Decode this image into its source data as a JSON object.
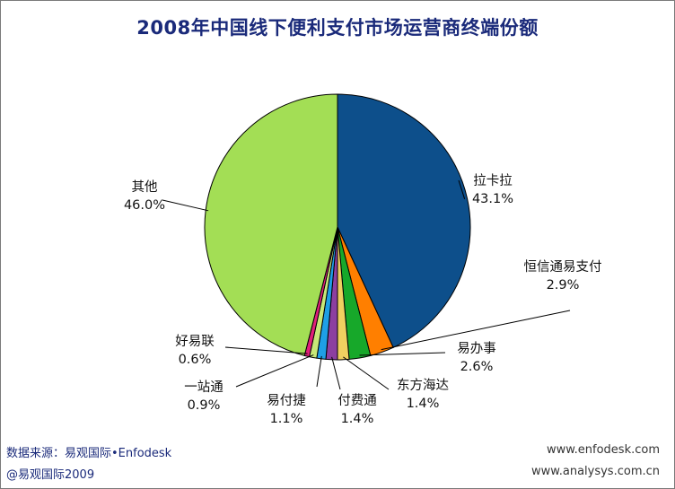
{
  "chart_data": {
    "type": "pie",
    "title": "2008年中国线下便利支付市场运营商终端份额",
    "slices": [
      {
        "name": "拉卡拉",
        "value": 43.1,
        "label": "43.1%",
        "color": "#0d4f8b"
      },
      {
        "name": "恒信通易支付",
        "value": 2.9,
        "label": "2.9%",
        "color": "#ff7f00"
      },
      {
        "name": "易办事",
        "value": 2.6,
        "label": "2.6%",
        "color": "#17a82a"
      },
      {
        "name": "东方海达",
        "value": 1.4,
        "label": "1.4%",
        "color": "#f0d060"
      },
      {
        "name": "付费通",
        "value": 1.4,
        "label": "1.4%",
        "color": "#8c3fa0"
      },
      {
        "name": "易付捷",
        "value": 1.1,
        "label": "1.1%",
        "color": "#1e9fe6"
      },
      {
        "name": "一站通",
        "value": 0.9,
        "label": "0.9%",
        "color": "#c8e878"
      },
      {
        "name": "好易联",
        "value": 0.6,
        "label": "0.6%",
        "color": "#e0207a"
      },
      {
        "name": "其他",
        "value": 46.0,
        "label": "46.0%",
        "color": "#a3de55"
      }
    ]
  },
  "footer": {
    "source": "数据来源：易观国际•Enfodesk",
    "copyright": "@易观国际2009",
    "site1": "www.enfodesk.com",
    "site2": "www.analysys.com.cn"
  }
}
